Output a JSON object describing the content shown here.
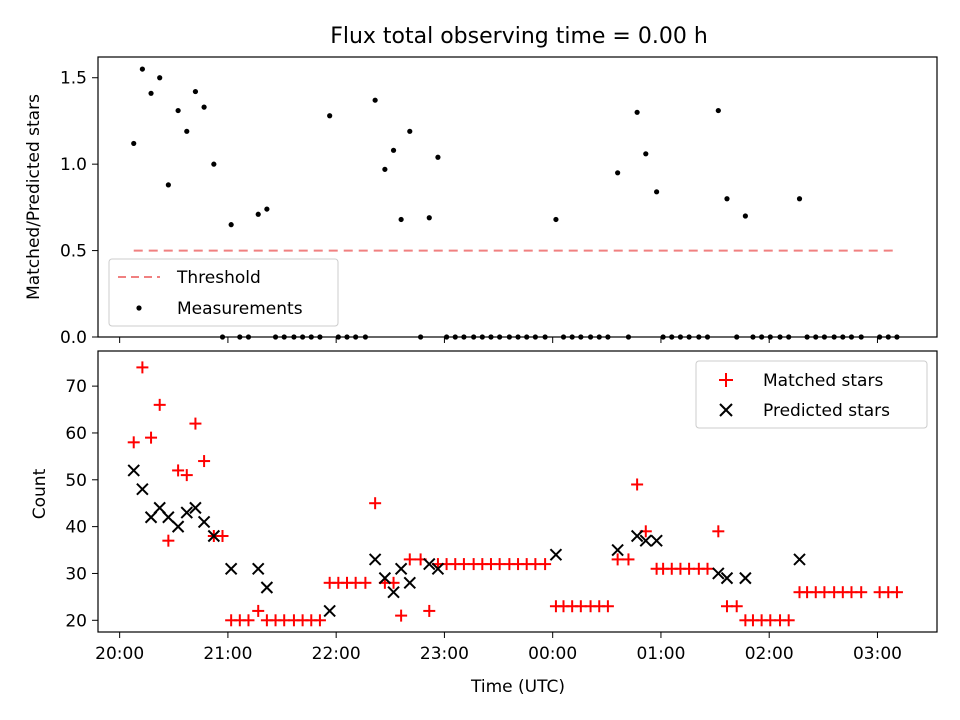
{
  "figure": {
    "title": "Flux total observing time = 0.00 h"
  },
  "chart_data": [
    {
      "type": "scatter",
      "panel": "top",
      "ylabel": "Matched/Predicted stars",
      "ylim": [
        0,
        1.62
      ],
      "yticks": [
        "0.0",
        "0.5",
        "1.0",
        "1.5"
      ],
      "xlim_hours": [
        19.8,
        27.55
      ],
      "grid": false,
      "legend_position": "lower-left",
      "threshold": {
        "name": "Threshold",
        "value": 0.5,
        "x_range_hours": [
          20.13,
          27.15
        ],
        "color": "#f08080"
      },
      "series": [
        {
          "name": "Measurements",
          "color": "#000000",
          "points": [
            [
              20.13,
              1.12
            ],
            [
              20.21,
              1.55
            ],
            [
              20.29,
              1.41
            ],
            [
              20.37,
              1.5
            ],
            [
              20.45,
              0.88
            ],
            [
              20.54,
              1.31
            ],
            [
              20.62,
              1.19
            ],
            [
              20.7,
              1.42
            ],
            [
              20.78,
              1.33
            ],
            [
              20.87,
              1.0
            ],
            [
              20.95,
              0.0
            ],
            [
              21.03,
              0.65
            ],
            [
              21.11,
              0.0
            ],
            [
              21.19,
              0.0
            ],
            [
              21.28,
              0.71
            ],
            [
              21.36,
              0.74
            ],
            [
              21.44,
              0.0
            ],
            [
              21.52,
              0.0
            ],
            [
              21.61,
              0.0
            ],
            [
              21.69,
              0.0
            ],
            [
              21.77,
              0.0
            ],
            [
              21.85,
              0.0
            ],
            [
              21.94,
              1.28
            ],
            [
              22.02,
              0.0
            ],
            [
              22.1,
              0.0
            ],
            [
              22.18,
              0.0
            ],
            [
              22.27,
              0.0
            ],
            [
              22.36,
              1.37
            ],
            [
              22.45,
              0.97
            ],
            [
              22.53,
              1.08
            ],
            [
              22.6,
              0.68
            ],
            [
              22.68,
              1.19
            ],
            [
              22.78,
              0.0
            ],
            [
              22.86,
              0.69
            ],
            [
              22.94,
              1.04
            ],
            [
              23.02,
              0.0
            ],
            [
              23.1,
              0.0
            ],
            [
              23.18,
              0.0
            ],
            [
              23.27,
              0.0
            ],
            [
              23.35,
              0.0
            ],
            [
              23.43,
              0.0
            ],
            [
              23.51,
              0.0
            ],
            [
              23.6,
              0.0
            ],
            [
              23.68,
              0.0
            ],
            [
              23.76,
              0.0
            ],
            [
              23.84,
              0.0
            ],
            [
              23.93,
              0.0
            ],
            [
              24.03,
              0.68
            ],
            [
              24.1,
              0.0
            ],
            [
              24.18,
              0.0
            ],
            [
              24.26,
              0.0
            ],
            [
              24.35,
              0.0
            ],
            [
              24.43,
              0.0
            ],
            [
              24.51,
              0.0
            ],
            [
              24.6,
              0.95
            ],
            [
              24.7,
              0.0
            ],
            [
              24.78,
              1.3
            ],
            [
              24.86,
              1.06
            ],
            [
              24.96,
              0.84
            ],
            [
              25.02,
              0.0
            ],
            [
              25.1,
              0.0
            ],
            [
              25.18,
              0.0
            ],
            [
              25.26,
              0.0
            ],
            [
              25.35,
              0.0
            ],
            [
              25.43,
              0.0
            ],
            [
              25.53,
              1.31
            ],
            [
              25.61,
              0.8
            ],
            [
              25.7,
              0.0
            ],
            [
              25.78,
              0.7
            ],
            [
              25.85,
              0.0
            ],
            [
              25.93,
              0.0
            ],
            [
              26.01,
              0.0
            ],
            [
              26.1,
              0.0
            ],
            [
              26.18,
              0.0
            ],
            [
              26.28,
              0.8
            ],
            [
              26.35,
              0.0
            ],
            [
              26.43,
              0.0
            ],
            [
              26.51,
              0.0
            ],
            [
              26.6,
              0.0
            ],
            [
              26.68,
              0.0
            ],
            [
              26.76,
              0.0
            ],
            [
              26.85,
              0.0
            ],
            [
              27.02,
              0.0
            ],
            [
              27.1,
              0.0
            ],
            [
              27.18,
              0.0
            ]
          ]
        }
      ]
    },
    {
      "type": "scatter",
      "panel": "bottom",
      "ylabel": "Count",
      "xlabel": "Time (UTC)",
      "ylim": [
        17.5,
        77.5
      ],
      "yticks": [
        "20",
        "30",
        "40",
        "50",
        "60",
        "70"
      ],
      "xlim_hours": [
        19.8,
        27.55
      ],
      "xticks": [
        "20:00",
        "21:00",
        "22:00",
        "23:00",
        "00:00",
        "01:00",
        "02:00",
        "03:00"
      ],
      "grid": false,
      "legend_position": "upper-right",
      "series": [
        {
          "name": "Matched stars",
          "marker": "+",
          "color": "#ff0000",
          "points": [
            [
              20.13,
              58
            ],
            [
              20.21,
              74
            ],
            [
              20.29,
              59
            ],
            [
              20.37,
              66
            ],
            [
              20.45,
              37
            ],
            [
              20.54,
              52
            ],
            [
              20.62,
              51
            ],
            [
              20.7,
              62
            ],
            [
              20.78,
              54
            ],
            [
              20.87,
              38
            ],
            [
              20.95,
              38
            ],
            [
              21.03,
              20
            ],
            [
              21.11,
              20
            ],
            [
              21.19,
              20
            ],
            [
              21.28,
              22
            ],
            [
              21.36,
              20
            ],
            [
              21.44,
              20
            ],
            [
              21.52,
              20
            ],
            [
              21.61,
              20
            ],
            [
              21.69,
              20
            ],
            [
              21.77,
              20
            ],
            [
              21.85,
              20
            ],
            [
              21.94,
              28
            ],
            [
              22.02,
              28
            ],
            [
              22.1,
              28
            ],
            [
              22.18,
              28
            ],
            [
              22.27,
              28
            ],
            [
              22.36,
              45
            ],
            [
              22.45,
              28
            ],
            [
              22.53,
              28
            ],
            [
              22.6,
              21
            ],
            [
              22.68,
              33
            ],
            [
              22.78,
              33
            ],
            [
              22.86,
              22
            ],
            [
              22.94,
              32
            ],
            [
              23.02,
              32
            ],
            [
              23.1,
              32
            ],
            [
              23.18,
              32
            ],
            [
              23.27,
              32
            ],
            [
              23.35,
              32
            ],
            [
              23.43,
              32
            ],
            [
              23.51,
              32
            ],
            [
              23.6,
              32
            ],
            [
              23.68,
              32
            ],
            [
              23.76,
              32
            ],
            [
              23.84,
              32
            ],
            [
              23.93,
              32
            ],
            [
              24.03,
              23
            ],
            [
              24.1,
              23
            ],
            [
              24.18,
              23
            ],
            [
              24.26,
              23
            ],
            [
              24.35,
              23
            ],
            [
              24.43,
              23
            ],
            [
              24.51,
              23
            ],
            [
              24.6,
              33
            ],
            [
              24.7,
              33
            ],
            [
              24.78,
              49
            ],
            [
              24.86,
              39
            ],
            [
              24.96,
              31
            ],
            [
              25.02,
              31
            ],
            [
              25.1,
              31
            ],
            [
              25.18,
              31
            ],
            [
              25.26,
              31
            ],
            [
              25.35,
              31
            ],
            [
              25.43,
              31
            ],
            [
              25.53,
              39
            ],
            [
              25.61,
              23
            ],
            [
              25.7,
              23
            ],
            [
              25.78,
              20
            ],
            [
              25.85,
              20
            ],
            [
              25.93,
              20
            ],
            [
              26.01,
              20
            ],
            [
              26.1,
              20
            ],
            [
              26.18,
              20
            ],
            [
              26.28,
              26
            ],
            [
              26.35,
              26
            ],
            [
              26.43,
              26
            ],
            [
              26.51,
              26
            ],
            [
              26.6,
              26
            ],
            [
              26.68,
              26
            ],
            [
              26.76,
              26
            ],
            [
              26.85,
              26
            ],
            [
              27.02,
              26
            ],
            [
              27.1,
              26
            ],
            [
              27.18,
              26
            ]
          ]
        },
        {
          "name": "Predicted stars",
          "marker": "x",
          "color": "#000000",
          "points": [
            [
              20.13,
              52
            ],
            [
              20.21,
              48
            ],
            [
              20.29,
              42
            ],
            [
              20.37,
              44
            ],
            [
              20.45,
              42
            ],
            [
              20.54,
              40
            ],
            [
              20.62,
              43
            ],
            [
              20.7,
              44
            ],
            [
              20.78,
              41
            ],
            [
              20.87,
              38
            ],
            [
              21.03,
              31
            ],
            [
              21.28,
              31
            ],
            [
              21.36,
              27
            ],
            [
              21.94,
              22
            ],
            [
              22.36,
              33
            ],
            [
              22.45,
              29
            ],
            [
              22.53,
              26
            ],
            [
              22.6,
              31
            ],
            [
              22.68,
              28
            ],
            [
              22.86,
              32
            ],
            [
              22.94,
              31
            ],
            [
              24.03,
              34
            ],
            [
              24.6,
              35
            ],
            [
              24.78,
              38
            ],
            [
              24.86,
              37
            ],
            [
              24.96,
              37
            ],
            [
              25.53,
              30
            ],
            [
              25.61,
              29
            ],
            [
              25.78,
              29
            ],
            [
              26.28,
              33
            ]
          ]
        }
      ]
    }
  ]
}
